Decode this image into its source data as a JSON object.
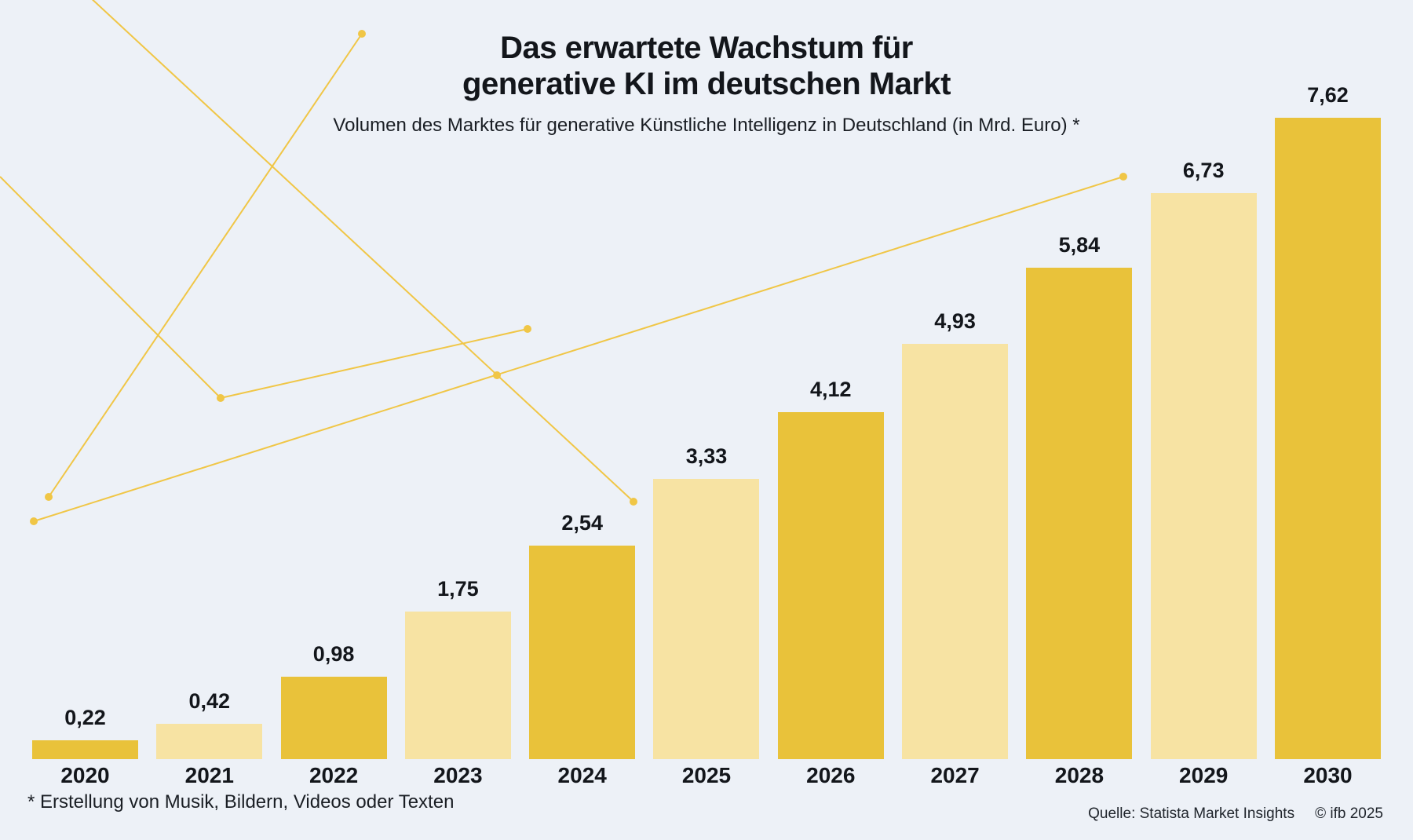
{
  "title": {
    "line1": "Das erwartete Wachstum für",
    "line2": "generative KI im deutschen Markt"
  },
  "subtitle": "Volumen des Marktes für generative Künstliche Intelligenz in Deutschland (in Mrd. Euro) *",
  "footnote": "* Erstellung von Musik, Bildern, Videos oder Texten",
  "source": {
    "publisher": "Quelle: Statista Market Insights",
    "credit": "© ifb 2025"
  },
  "colors": {
    "background": "#edf1f7",
    "bar_dark": "#e9c23a",
    "bar_light": "#f7e3a3",
    "accent_line": "#f0c646",
    "text": "#13161b"
  },
  "chart_data": {
    "type": "bar",
    "title": "Das erwartete Wachstum für generative KI im deutschen Markt",
    "subtitle": "Volumen des Marktes für generative Künstliche Intelligenz in Deutschland (in Mrd. Euro) *",
    "unit": "Mrd. Euro",
    "categories": [
      "2020",
      "2021",
      "2022",
      "2023",
      "2024",
      "2025",
      "2026",
      "2027",
      "2028",
      "2029",
      "2030"
    ],
    "values": [
      0.22,
      0.42,
      0.98,
      1.75,
      2.54,
      3.33,
      4.12,
      4.93,
      5.84,
      6.73,
      7.62
    ],
    "value_labels": [
      "0,22",
      "0,42",
      "0,98",
      "1,75",
      "2,54",
      "3,33",
      "4,12",
      "4,93",
      "5,84",
      "6,73",
      "7,62"
    ],
    "bar_shade_pattern": [
      "dark",
      "light",
      "dark",
      "light",
      "dark",
      "light",
      "dark",
      "light",
      "dark",
      "light",
      "dark"
    ],
    "ylim": [
      0,
      7.62
    ],
    "grid": false,
    "legend": "none",
    "value_labels_position": "above-bars",
    "xlabel": "",
    "ylabel": ""
  }
}
